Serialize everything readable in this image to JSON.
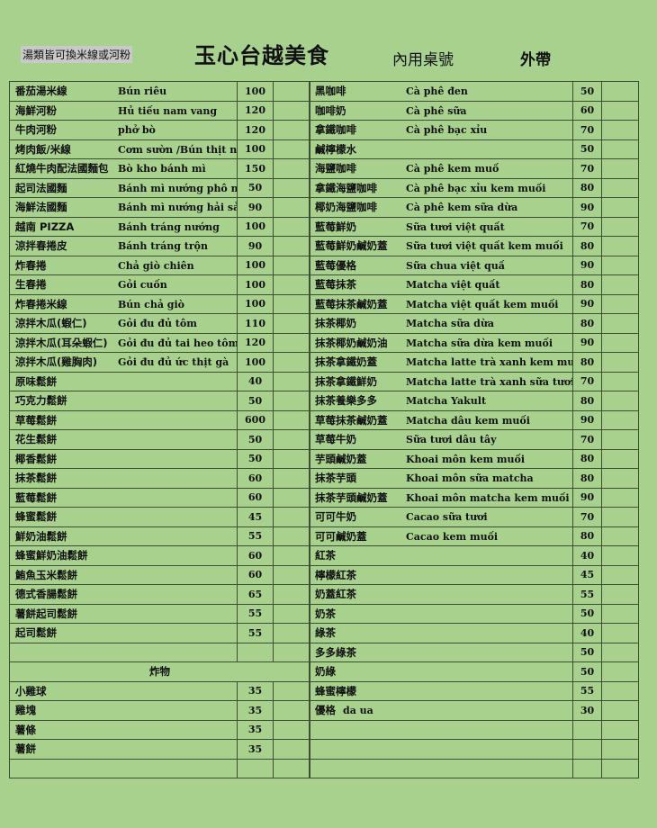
{
  "header": {
    "note": "湯類皆可換米線或河粉",
    "title": "玉心台越美食",
    "dine_in": "內用桌號",
    "takeout": "外帶"
  },
  "colors": {
    "background": "#a9d18e",
    "grid": "#3c4d33",
    "note_highlight": "#c9c9c9"
  },
  "left_menu": [
    {
      "zh": "番茄湯米線",
      "vi": "Bún riêu",
      "price": "100"
    },
    {
      "zh": "海鮮河粉",
      "vi": "Hủ tiếu nam vang",
      "price": "120"
    },
    {
      "zh": "牛肉河粉",
      "vi": "phở bò",
      "price": "120"
    },
    {
      "zh": "烤肉飯/米線",
      "vi": "Cơm sườn /Bún thịt nướng",
      "price": "100"
    },
    {
      "zh": "紅燒牛肉配法國麵包",
      "vi": "Bò kho bánh mì",
      "price": "150"
    },
    {
      "zh": "起司法國麵",
      "vi": "Bánh mì nướng phô mai",
      "price": "50"
    },
    {
      "zh": "海鮮法國麵",
      "vi": "Bánh mì nướng hải sản",
      "price": "90"
    },
    {
      "zh": "越南 PIZZA",
      "vi": "Bánh tráng nướng",
      "price": "100"
    },
    {
      "zh": "涼拌春捲皮",
      "vi": "Bánh tráng trộn",
      "price": "90"
    },
    {
      "zh": "炸春捲",
      "vi": "Chả giò chiên",
      "price": "100"
    },
    {
      "zh": "生春捲",
      "vi": "Gỏi cuốn",
      "price": "100"
    },
    {
      "zh": "炸春捲米線",
      "vi": "Bún chả giò",
      "price": "100"
    },
    {
      "zh": "涼拌木瓜(蝦仁)",
      "vi": "Gỏi đu đủ tôm",
      "price": "110"
    },
    {
      "zh": "涼拌木瓜(耳朵蝦仁)",
      "vi": "Gỏi đu đủ tai heo tôm",
      "price": "120"
    },
    {
      "zh": "涼拌木瓜(雞胸肉)",
      "vi": "Gỏi đu đủ ức thịt gà",
      "price": "100"
    },
    {
      "zh": "原味鬆餅",
      "price": "40"
    },
    {
      "zh": "巧克力鬆餅",
      "price": "50"
    },
    {
      "zh": "草莓鬆餅",
      "price": "600"
    },
    {
      "zh": "花生鬆餅",
      "price": "50"
    },
    {
      "zh": "椰香鬆餅",
      "price": "50"
    },
    {
      "zh": "抹茶鬆餅",
      "price": "60"
    },
    {
      "zh": "藍莓鬆餅",
      "price": "60"
    },
    {
      "zh": "蜂蜜鬆餅",
      "price": "45"
    },
    {
      "zh": "鮮奶油鬆餅",
      "price": "55"
    },
    {
      "zh": "蜂蜜鮮奶油鬆餅",
      "price": "60"
    },
    {
      "zh": "鮪魚玉米鬆餅",
      "price": "60"
    },
    {
      "zh": "德式香腸鬆餅",
      "price": "65"
    },
    {
      "zh": "薯餅起司鬆餅",
      "price": "55"
    },
    {
      "zh": "起司鬆餅",
      "price": "55"
    },
    {},
    {
      "section": "炸物"
    },
    {
      "zh": "小雞球",
      "price": "35"
    },
    {
      "zh": "雞塊",
      "price": "35"
    },
    {
      "zh": "薯條",
      "price": "35"
    },
    {
      "zh": "薯餅",
      "price": "35"
    },
    {}
  ],
  "right_menu": [
    {
      "zh": "黑咖啡",
      "vi": "Cà phê đen",
      "price": "50"
    },
    {
      "zh": "咖啡奶",
      "vi": "Cà phê sữa",
      "price": "60"
    },
    {
      "zh": "拿鐵咖啡",
      "vi": "Cà phê bạc xỉu",
      "price": "70"
    },
    {
      "zh": "鹹檸檬水",
      "price": "50"
    },
    {
      "zh": "海鹽咖啡",
      "vi": "Cà phê kem muố",
      "price": "70"
    },
    {
      "zh": "拿鐵海鹽咖啡",
      "vi": "Cà phê bạc xỉu kem muối",
      "price": "80"
    },
    {
      "zh": "椰奶海鹽咖啡",
      "vi": "Cà phê kem sữa dừa",
      "price": "90"
    },
    {
      "zh": "藍莓鮮奶",
      "vi": "Sữa tươi việt quất",
      "price": "70"
    },
    {
      "zh": "藍莓鮮奶鹹奶蓋",
      "vi": "Sữa tươi việt quất kem muối",
      "price": "80"
    },
    {
      "zh": "藍莓優格",
      "vi": "Sữa chua việt quấ",
      "price": "90"
    },
    {
      "zh": "藍莓抹茶",
      "vi": "Matcha việt quất",
      "price": "80"
    },
    {
      "zh": "藍莓抹茶鹹奶蓋",
      "vi": "Matcha việt quất kem muối",
      "price": "90"
    },
    {
      "zh": "抹茶椰奶",
      "vi": "Matcha sữa dừa",
      "price": "80"
    },
    {
      "zh": "抹茶椰奶鹹奶油",
      "vi": "Matcha sữa dừa kem muối",
      "price": "90"
    },
    {
      "zh": "抹茶拿鐵奶蓋",
      "vi": "Matcha latte trà xanh kem muối",
      "price": "80"
    },
    {
      "zh": "抹茶拿鐵鮮奶",
      "vi": "Matcha latte trà xanh sữa tươi",
      "price": "70"
    },
    {
      "zh": "抹茶養樂多多",
      "vi": "Matcha Yakult",
      "price": "80"
    },
    {
      "zh": "草莓抹茶鹹奶蓋",
      "vi": "Matcha dâu kem muối",
      "price": "90"
    },
    {
      "zh": "草莓牛奶",
      "vi": "Sữa tươi dâu tây",
      "price": "70"
    },
    {
      "zh": "芋頭鹹奶蓋",
      "vi": "Khoai môn kem muối",
      "price": "80"
    },
    {
      "zh": "抹茶芋頭",
      "vi": "Khoai môn sữa matcha",
      "price": "80"
    },
    {
      "zh": "抹茶芋頭鹹奶蓋",
      "vi": "Khoai môn matcha kem muối",
      "price": "90"
    },
    {
      "zh": "可可牛奶",
      "vi": "Cacao sữa tươi",
      "price": "70"
    },
    {
      "zh": "可可鹹奶蓋",
      "vi": "Cacao kem muối",
      "price": "80"
    },
    {
      "zh": "紅茶",
      "price": "40"
    },
    {
      "zh": "檸檬紅茶",
      "price": "45"
    },
    {
      "zh": "奶蓋紅茶",
      "price": "55"
    },
    {
      "zh": "奶茶",
      "price": "50"
    },
    {
      "zh": "綠茶",
      "price": "40"
    },
    {
      "zh": "多多綠茶",
      "price": "50"
    },
    {
      "zh": "奶綠",
      "price": "50"
    },
    {
      "zh": "蜂蜜檸檬",
      "price": "55"
    },
    {
      "zh": "優格",
      "vi": "da ua",
      "price": "30",
      "zh_compact": true
    },
    {},
    {},
    {}
  ]
}
